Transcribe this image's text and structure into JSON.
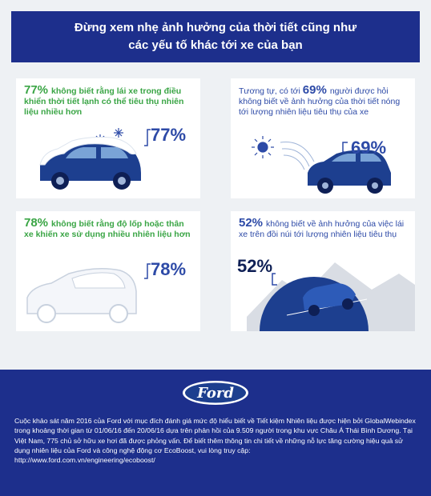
{
  "header": {
    "line1": "Đừng xem nhẹ ảnh hưởng của thời tiết cũng như",
    "line2": "các yếu tố khác tới xe của bạn"
  },
  "cards": [
    {
      "big": "77%",
      "text": "không biết rằng lái xe trong điều khiển thời tiết lạnh có thể tiêu thụ nhiên liệu nhiều hơn",
      "pct": "77%"
    },
    {
      "prefix": "Tương tự, có tới",
      "big": "69%",
      "text": "người được hỏi không biết về ảnh hưởng của thời tiết nóng tới lượng nhiên liệu tiêu thụ của xe",
      "pct": "69%"
    },
    {
      "big": "78%",
      "text": "không biết rằng độ lốp hoặc thân xe khiến xe sử dụng nhiều nhiên liệu hơn",
      "pct": "78%"
    },
    {
      "big": "52%",
      "text": "không biết về ảnh hưởng của việc lái xe trên đồi núi tới lượng nhiên liệu tiêu thụ",
      "pct": "52%"
    }
  ],
  "footer": {
    "logo_text": "Ford",
    "text": "Cuộc khảo sát năm 2016 của Ford với mục đích đánh giá mức độ hiểu biết về Tiết kiệm Nhiên liệu được hiện bởi GlobalWebindex trong khoảng thời gian từ 01/06/16 đến 20/06/16 dựa trên phản hồi của 9.509 người trong khu vực Châu Á Thái Bình Dương. Tại Việt Nam, 775 chủ sở hữu xe hơi đã được phỏng vấn. Để biết thêm thông tin chi tiết về những nỗ lực tăng cường hiệu quả sử dụng nhiên liệu của Ford và công nghệ động cơ EcoBoost, vui lòng truy cập:",
    "url": "http://www.ford.com.vn/engineering/ecoboost/"
  },
  "colors": {
    "brand_blue": "#1d2f8c",
    "accent_green": "#3aa545",
    "text_blue": "#2d4aa7",
    "background": "#eef1f4"
  }
}
